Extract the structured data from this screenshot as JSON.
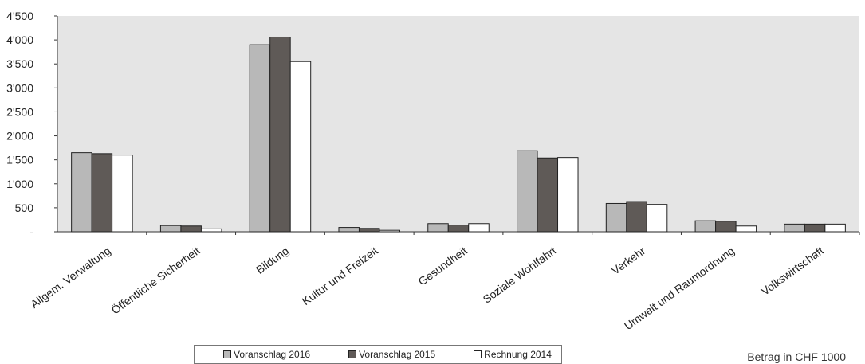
{
  "chart_data": {
    "type": "bar",
    "categories": [
      "Allgem. Verwaltung",
      "Öffentliche Sicherheit",
      "Bildung",
      "Kultur und Freizeit",
      "Gesundheit",
      "Soziale Wohlfahrt",
      "Verkehr",
      "Umwelt und Raumordnung",
      "Volkswirtschaft"
    ],
    "series": [
      {
        "name": "Voranschlag 2016",
        "color": "#b8b8b8",
        "values": [
          1650,
          130,
          3900,
          90,
          170,
          1690,
          590,
          230,
          160
        ]
      },
      {
        "name": "Voranschlag 2015",
        "color": "#5f5a57",
        "values": [
          1630,
          120,
          4060,
          70,
          140,
          1540,
          630,
          220,
          160
        ]
      },
      {
        "name": "Rechnung 2014",
        "color": "#ffffff",
        "values": [
          1600,
          60,
          3550,
          30,
          170,
          1550,
          570,
          120,
          160
        ]
      }
    ],
    "yticks": [
      "-",
      "500",
      "1'000",
      "1'500",
      "2'000",
      "2'500",
      "3'000",
      "3'500",
      "4'000",
      "4'500"
    ],
    "ylim": [
      0,
      4500
    ],
    "note": "Betrag in CHF 1000"
  }
}
